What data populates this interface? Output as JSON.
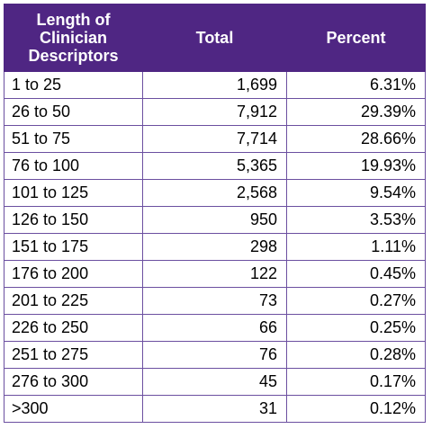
{
  "colors": {
    "header_bg": "#4f2683",
    "header_text": "#ffffff",
    "border": "#6b4fa0"
  },
  "table": {
    "headers": [
      [
        "Length of",
        "Clinician",
        "Descriptors"
      ],
      "Total",
      "Percent"
    ],
    "rows": [
      [
        "1 to 25",
        "1,699",
        "6.31%"
      ],
      [
        "26 to 50",
        "7,912",
        "29.39%"
      ],
      [
        "51 to 75",
        "7,714",
        "28.66%"
      ],
      [
        "76 to 100",
        "5,365",
        "19.93%"
      ],
      [
        "101 to 125",
        "2,568",
        "9.54%"
      ],
      [
        "126 to 150",
        "950",
        "3.53%"
      ],
      [
        "151 to 175",
        "298",
        "1.11%"
      ],
      [
        "176 to 200",
        "122",
        "0.45%"
      ],
      [
        "201 to 225",
        "73",
        "0.27%"
      ],
      [
        "226 to 250",
        "66",
        "0.25%"
      ],
      [
        "251 to 275",
        "76",
        "0.28%"
      ],
      [
        "276 to 300",
        "45",
        "0.17%"
      ],
      [
        ">300",
        "31",
        "0.12%"
      ]
    ]
  }
}
